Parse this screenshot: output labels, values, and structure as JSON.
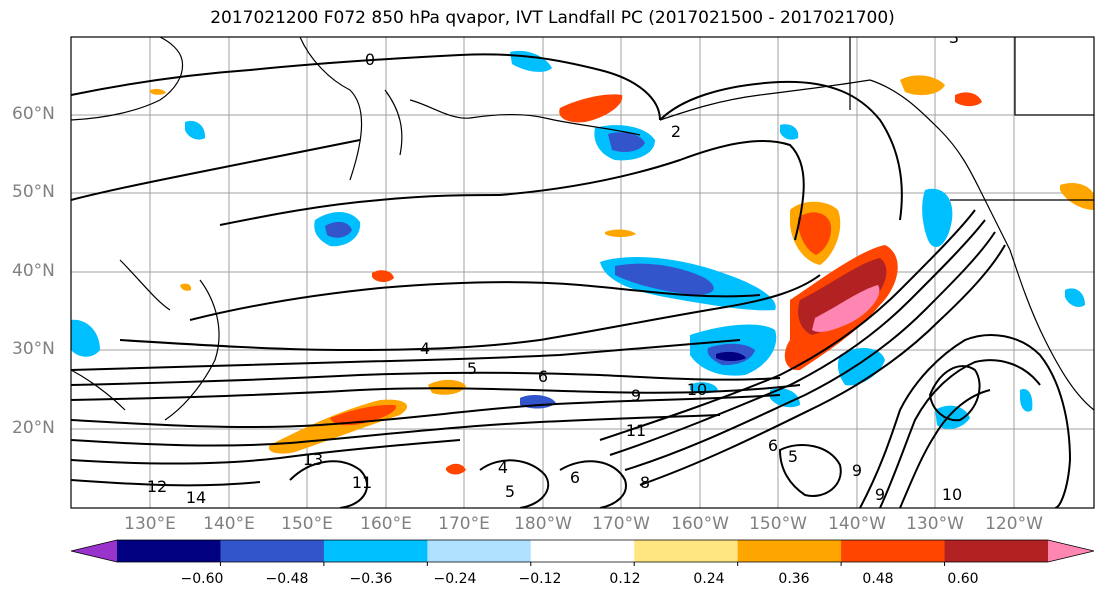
{
  "title": "2017021200 F072 850 hPa qvapor, IVT Landfall PC (2017021500 - 2017021700)",
  "lat_labels": [
    "60°N",
    "50°N",
    "40°N",
    "30°N",
    "20°N"
  ],
  "lon_labels": [
    "130°E",
    "140°E",
    "150°E",
    "160°E",
    "170°E",
    "180°W",
    "170°W",
    "160°W",
    "150°W",
    "140°W",
    "130°W",
    "120°W"
  ],
  "contour_labels": [
    "0",
    "2",
    "4",
    "5",
    "6",
    "9",
    "10",
    "11",
    "12",
    "13",
    "14",
    "4",
    "5",
    "6",
    "8",
    "9",
    "9",
    "10",
    "11",
    "6",
    "5",
    "3"
  ],
  "colorbar": {
    "colors": [
      "#9933cc",
      "#000080",
      "#3355cc",
      "#00bfff",
      "#b0e0ff",
      "#ffffff",
      "#ffe680",
      "#ffa500",
      "#ff4500",
      "#b22222",
      "#ff85b3"
    ],
    "tick_labels": [
      "−0.60",
      "−0.48",
      "−0.36",
      "−0.24",
      "−0.12",
      "0.12",
      "0.24",
      "0.36",
      "0.48",
      "0.60"
    ]
  }
}
